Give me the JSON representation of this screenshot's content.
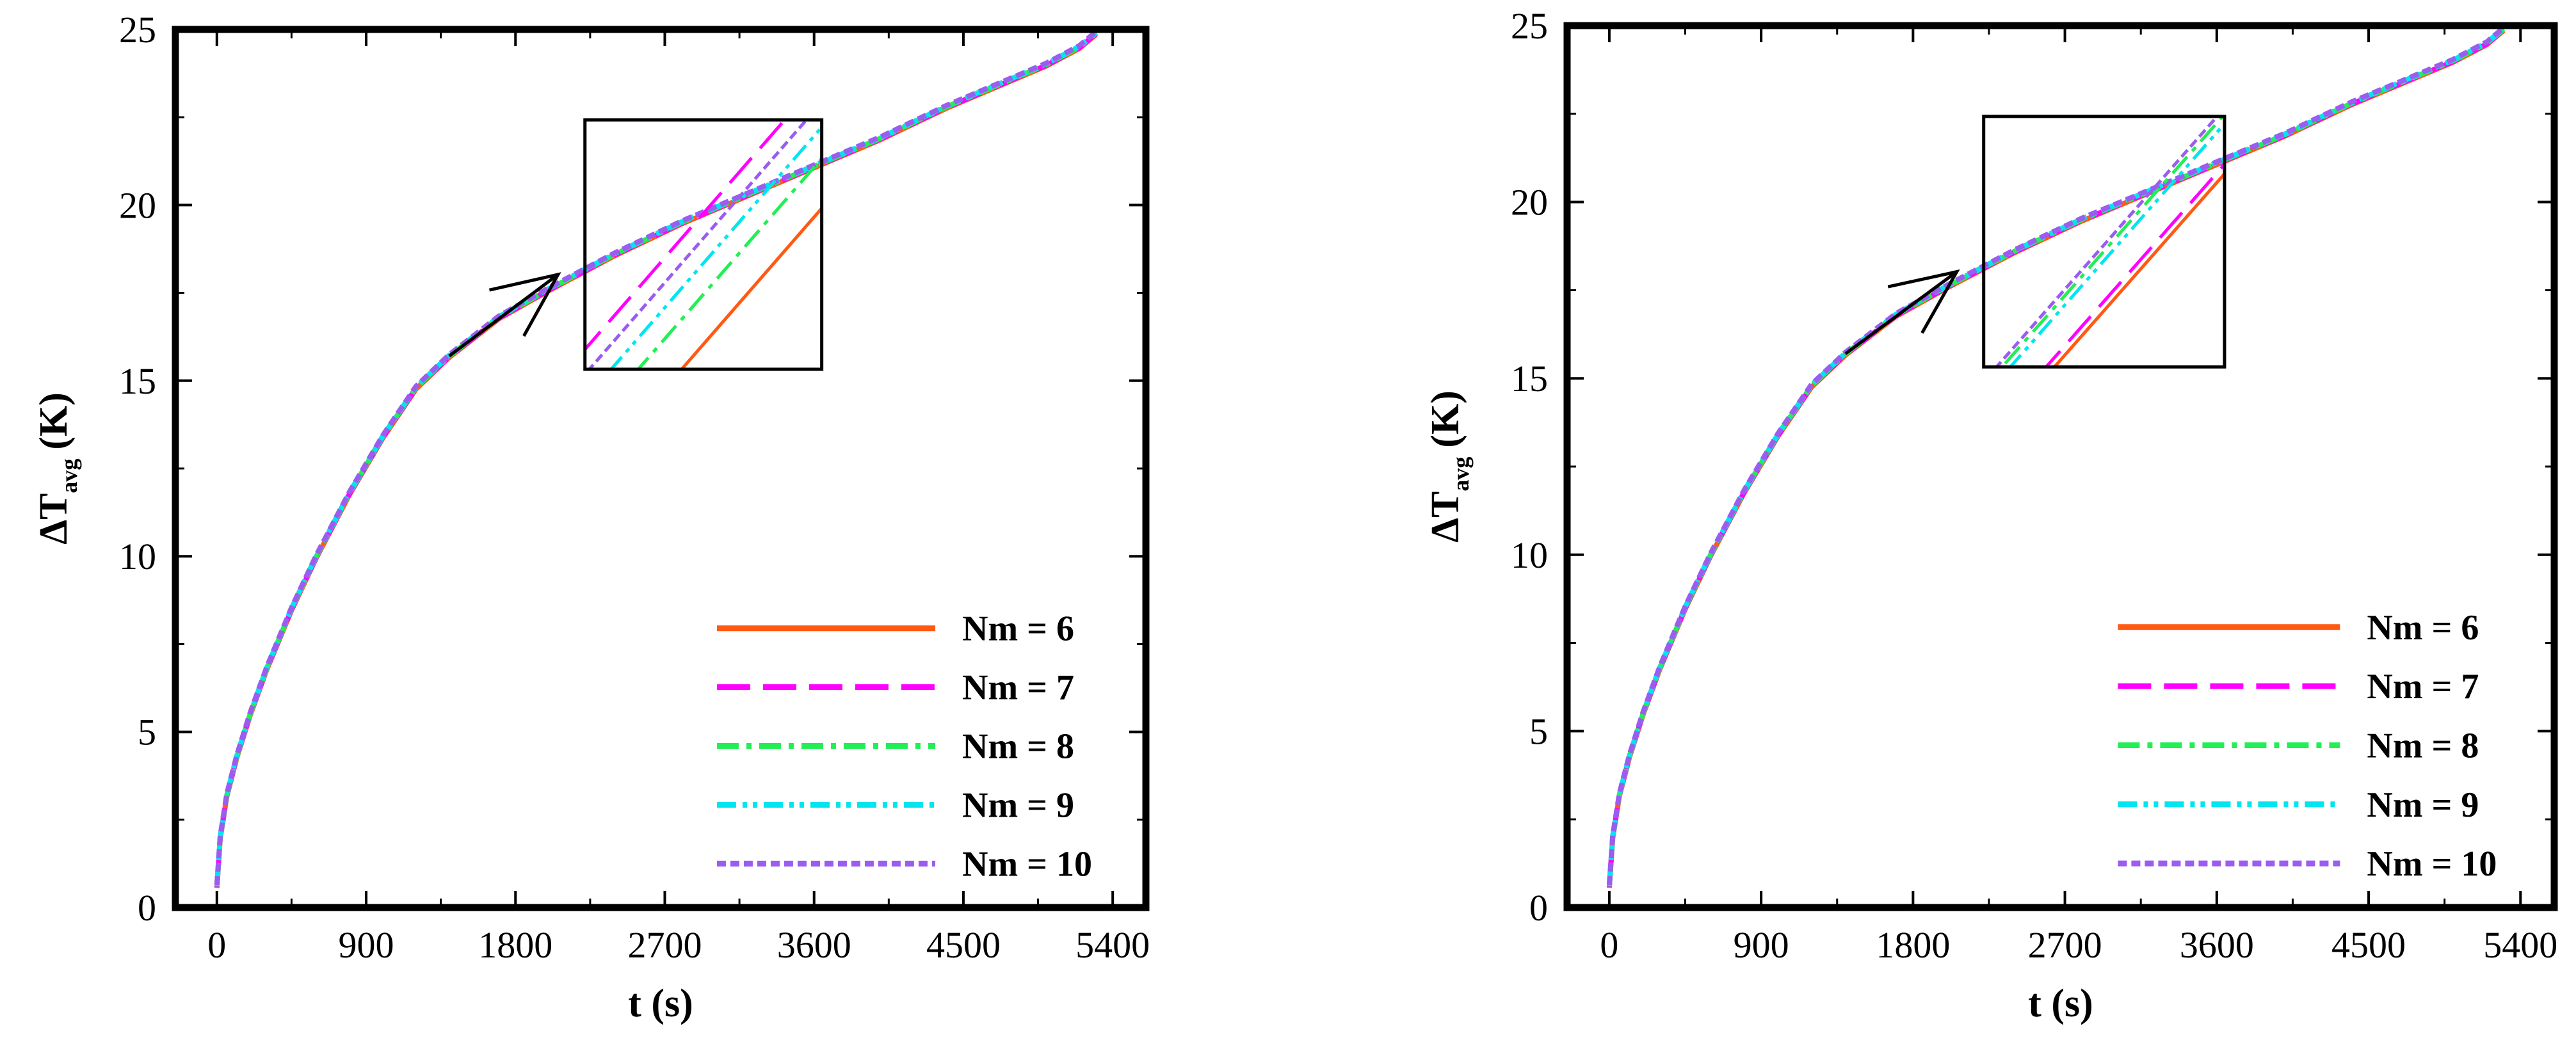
{
  "chart_data": [
    {
      "type": "line",
      "panel": "left",
      "xlabel": "t (s)",
      "ylabel_main": "ΔT",
      "ylabel_sub": "avg",
      "ylabel_unit": "(K)",
      "xlim": [
        -250,
        5600
      ],
      "ylim": [
        0,
        25
      ],
      "xticks": [
        0,
        900,
        1800,
        2700,
        3600,
        4500,
        5400
      ],
      "yticks": [
        0,
        5,
        10,
        15,
        20,
        25
      ],
      "x": [
        0,
        20,
        60,
        120,
        200,
        300,
        450,
        600,
        800,
        1000,
        1200,
        1400,
        1700,
        2000,
        2400,
        2800,
        3200,
        3600,
        4000,
        4400,
        4700,
        5000,
        5200,
        5300
      ],
      "y": [
        0.6,
        2.0,
        3.2,
        4.3,
        5.5,
        6.8,
        8.5,
        10.0,
        11.8,
        13.4,
        14.8,
        15.7,
        16.8,
        17.6,
        18.6,
        19.5,
        20.3,
        21.1,
        21.9,
        22.8,
        23.4,
        24.0,
        24.5,
        24.9
      ],
      "series": [
        {
          "name": "Nm = 6",
          "color": "#ff5a14",
          "dash": "solid",
          "inset_offset": -2.6
        },
        {
          "name": "Nm = 7",
          "color": "#ff00ff",
          "dash": "long-dash",
          "inset_offset": 1.6
        },
        {
          "name": "Nm = 8",
          "color": "#22ee55",
          "dash": "dash-dot",
          "inset_offset": -1.0
        },
        {
          "name": "Nm = 9",
          "color": "#00e5f0",
          "dash": "dash-dot-dot",
          "inset_offset": 0.0
        },
        {
          "name": "Nm = 10",
          "color": "#9b5cf0",
          "dash": "short-dash",
          "inset_offset": 0.8
        }
      ]
    },
    {
      "type": "line",
      "panel": "right",
      "xlabel": "t (s)",
      "ylabel_main": "ΔT",
      "ylabel_sub": "avg",
      "ylabel_unit": "(K)",
      "xlim": [
        -250,
        5600
      ],
      "ylim": [
        0,
        25
      ],
      "xticks": [
        0,
        900,
        1800,
        2700,
        3600,
        4500,
        5400
      ],
      "yticks": [
        0,
        5,
        10,
        15,
        20,
        25
      ],
      "x": [
        0,
        20,
        60,
        120,
        200,
        300,
        450,
        600,
        800,
        1000,
        1200,
        1400,
        1700,
        2000,
        2400,
        2800,
        3200,
        3600,
        4000,
        4400,
        4700,
        5000,
        5200,
        5300
      ],
      "y": [
        0.6,
        2.0,
        3.2,
        4.3,
        5.5,
        6.8,
        8.5,
        10.0,
        11.8,
        13.4,
        14.8,
        15.7,
        16.8,
        17.6,
        18.6,
        19.5,
        20.3,
        21.1,
        21.9,
        22.8,
        23.4,
        24.0,
        24.5,
        24.9
      ],
      "series": [
        {
          "name": "Nm = 6",
          "color": "#ff5a14",
          "dash": "solid",
          "inset_offset": -1.6
        },
        {
          "name": "Nm = 7",
          "color": "#ff00ff",
          "dash": "long-dash",
          "inset_offset": -1.3
        },
        {
          "name": "Nm = 8",
          "color": "#22ee55",
          "dash": "dash-dot",
          "inset_offset": 0.3
        },
        {
          "name": "Nm = 9",
          "color": "#00e5f0",
          "dash": "dash-dot-dot",
          "inset_offset": 0.0
        },
        {
          "name": "Nm = 10",
          "color": "#9b5cf0",
          "dash": "short-dash",
          "inset_offset": 0.5
        }
      ]
    }
  ]
}
